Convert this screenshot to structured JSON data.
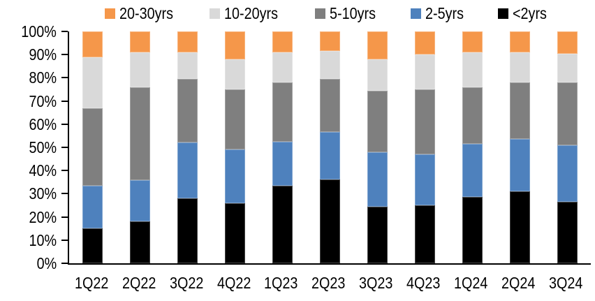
{
  "chart_data": {
    "type": "bar",
    "variant": "stacked-100-percent",
    "title": "",
    "xlabel": "",
    "ylabel": "",
    "grid": false,
    "legend_position": "top",
    "legend_order": [
      "20-30yrs",
      "10-20yrs",
      "5-10yrs",
      "2-5yrs",
      "<2yrs"
    ],
    "categories": [
      "1Q22",
      "2Q22",
      "3Q22",
      "4Q22",
      "1Q23",
      "2Q23",
      "3Q23",
      "4Q23",
      "1Q24",
      "2Q24",
      "3Q24"
    ],
    "series": [
      {
        "name": "<2yrs",
        "color": "#000000",
        "values": [
          15,
          18,
          28,
          26,
          33.5,
          36,
          24.5,
          25,
          28.5,
          31,
          26.5
        ]
      },
      {
        "name": "2-5yrs",
        "color": "#4E81BD",
        "values": [
          18.5,
          18,
          24,
          23,
          19,
          20.5,
          23.5,
          22,
          23,
          22.5,
          24.5
        ]
      },
      {
        "name": "5-10yrs",
        "color": "#7F7F7F",
        "values": [
          33.5,
          40,
          27.5,
          26,
          25.5,
          23,
          26.5,
          28,
          24.5,
          24.5,
          27
        ]
      },
      {
        "name": "10-20yrs",
        "color": "#D9D9D9",
        "values": [
          22,
          15,
          11.5,
          13,
          13,
          12,
          13.5,
          15,
          15,
          13,
          12.5
        ]
      },
      {
        "name": "20-30yrs",
        "color": "#F5974A",
        "values": [
          11,
          9,
          9,
          12,
          9,
          8.5,
          12,
          10,
          9,
          9,
          9.5
        ]
      }
    ],
    "y_axis": {
      "min": 0,
      "max": 100,
      "step": 10,
      "tick_labels": [
        "0%",
        "10%",
        "20%",
        "30%",
        "40%",
        "50%",
        "60%",
        "70%",
        "80%",
        "90%",
        "100%"
      ]
    },
    "colors": {
      "axis": "#000000",
      "background": "#FFFFFF",
      "text": "#000000"
    }
  }
}
